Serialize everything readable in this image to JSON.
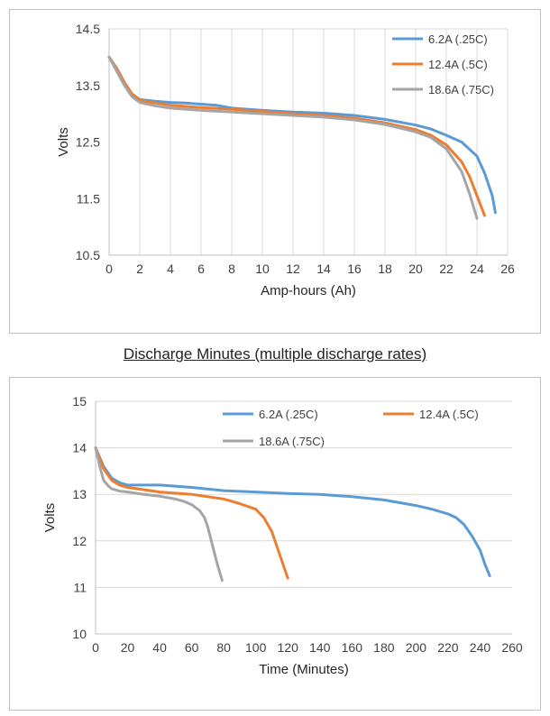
{
  "between_title": "Discharge Minutes (multiple discharge rates)",
  "colors": {
    "blue": "#5b9bd5",
    "orange": "#ed7d31",
    "gray": "#a5a5a5",
    "grid": "#d9d9d9",
    "axis": "#bfbfbf"
  },
  "chart_data": [
    {
      "type": "line",
      "xlabel": "Amp-hours (Ah)",
      "ylabel": "Volts",
      "xlim": [
        0,
        26
      ],
      "ylim": [
        10.5,
        14.5
      ],
      "xticks": [
        0,
        2,
        4,
        6,
        8,
        10,
        12,
        14,
        16,
        18,
        20,
        22,
        24,
        26
      ],
      "yticks": [
        10.5,
        11.5,
        12.5,
        13.5,
        14.5
      ],
      "grid": "vertical",
      "legend": "top-right",
      "series": [
        {
          "name": "6.2A (.25C)",
          "color": "#5b9bd5",
          "x": [
            0,
            0.5,
            1,
            1.5,
            2,
            3,
            4,
            5,
            6,
            7,
            8,
            10,
            12,
            14,
            16,
            18,
            20,
            21,
            22,
            23,
            24,
            24.5,
            25,
            25.2
          ],
          "y": [
            14.0,
            13.8,
            13.55,
            13.35,
            13.25,
            13.22,
            13.2,
            13.19,
            13.17,
            13.15,
            13.1,
            13.06,
            13.03,
            13.01,
            12.97,
            12.9,
            12.8,
            12.73,
            12.62,
            12.5,
            12.25,
            11.95,
            11.55,
            11.25
          ]
        },
        {
          "name": "12.4A (.5C)",
          "color": "#ed7d31",
          "x": [
            0,
            0.5,
            1,
            1.5,
            2,
            3,
            4,
            6,
            8,
            10,
            12,
            14,
            16,
            18,
            20,
            21,
            22,
            23,
            23.5,
            24,
            24.5
          ],
          "y": [
            14.0,
            13.8,
            13.55,
            13.35,
            13.24,
            13.19,
            13.15,
            13.11,
            13.08,
            13.04,
            13.0,
            12.97,
            12.92,
            12.84,
            12.72,
            12.62,
            12.45,
            12.15,
            11.9,
            11.55,
            11.2
          ]
        },
        {
          "name": "18.6A (.75C)",
          "color": "#a5a5a5",
          "x": [
            0,
            0.5,
            1,
            1.5,
            2,
            3,
            4,
            6,
            8,
            10,
            12,
            14,
            16,
            18,
            20,
            21,
            22,
            23,
            23.5,
            24
          ],
          "y": [
            14.0,
            13.75,
            13.5,
            13.3,
            13.2,
            13.14,
            13.1,
            13.06,
            13.03,
            13.0,
            12.97,
            12.94,
            12.89,
            12.81,
            12.68,
            12.58,
            12.38,
            11.98,
            11.6,
            11.15
          ]
        }
      ]
    },
    {
      "type": "line",
      "xlabel": "Time (Minutes)",
      "ylabel": "Volts",
      "xlim": [
        0,
        260
      ],
      "ylim": [
        10,
        15
      ],
      "xticks": [
        0,
        20,
        40,
        60,
        80,
        100,
        120,
        140,
        160,
        180,
        200,
        220,
        240,
        260
      ],
      "yticks": [
        10,
        11,
        12,
        13,
        14,
        15
      ],
      "grid": "horizontal",
      "legend": "top",
      "series": [
        {
          "name": "6.2A (.25C)",
          "color": "#5b9bd5",
          "x": [
            0,
            5,
            10,
            15,
            20,
            30,
            40,
            60,
            80,
            100,
            120,
            140,
            160,
            180,
            200,
            210,
            220,
            225,
            230,
            235,
            240,
            243,
            246
          ],
          "y": [
            14.0,
            13.6,
            13.35,
            13.25,
            13.2,
            13.2,
            13.2,
            13.15,
            13.08,
            13.05,
            13.02,
            13.0,
            12.95,
            12.88,
            12.76,
            12.68,
            12.58,
            12.5,
            12.35,
            12.1,
            11.8,
            11.5,
            11.25
          ]
        },
        {
          "name": "12.4A (.5C)",
          "color": "#ed7d31",
          "x": [
            0,
            5,
            10,
            15,
            20,
            30,
            40,
            60,
            70,
            80,
            90,
            100,
            105,
            110,
            115,
            120
          ],
          "y": [
            14.0,
            13.55,
            13.3,
            13.2,
            13.15,
            13.1,
            13.05,
            13.0,
            12.95,
            12.9,
            12.8,
            12.68,
            12.5,
            12.2,
            11.7,
            11.2
          ]
        },
        {
          "name": "18.6A (.75C)",
          "color": "#a5a5a5",
          "x": [
            0,
            3,
            5,
            8,
            10,
            15,
            20,
            30,
            40,
            50,
            55,
            60,
            65,
            68,
            70,
            73,
            76,
            79
          ],
          "y": [
            14.0,
            13.55,
            13.3,
            13.18,
            13.12,
            13.07,
            13.05,
            13.0,
            12.96,
            12.9,
            12.85,
            12.78,
            12.65,
            12.5,
            12.3,
            11.9,
            11.5,
            11.15
          ]
        }
      ]
    }
  ]
}
